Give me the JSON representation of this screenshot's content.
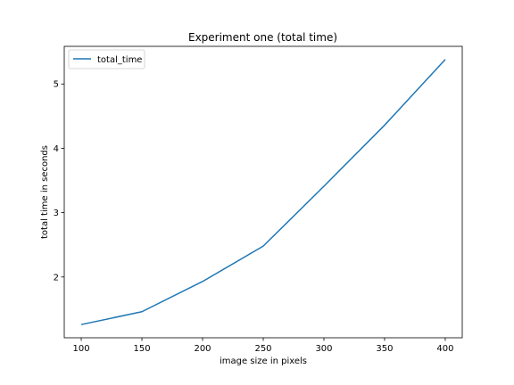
{
  "chart_data": {
    "type": "line",
    "title": "Experiment one (total time)",
    "xlabel": "image size in pixels",
    "ylabel": "total time in seconds",
    "x": [
      100,
      150,
      200,
      250,
      300,
      350,
      400
    ],
    "series": [
      {
        "name": "total_time",
        "color": "#1f77b4",
        "values": [
          1.26,
          1.46,
          1.93,
          2.48,
          3.41,
          4.36,
          5.38
        ]
      }
    ],
    "xlim": [
      86,
      414
    ],
    "ylim": [
      1.055,
      5.585
    ],
    "xticks": [
      100,
      150,
      200,
      250,
      300,
      350,
      400
    ],
    "yticks": [
      2,
      3,
      4,
      5
    ],
    "grid": false,
    "legend_position": "upper left"
  }
}
